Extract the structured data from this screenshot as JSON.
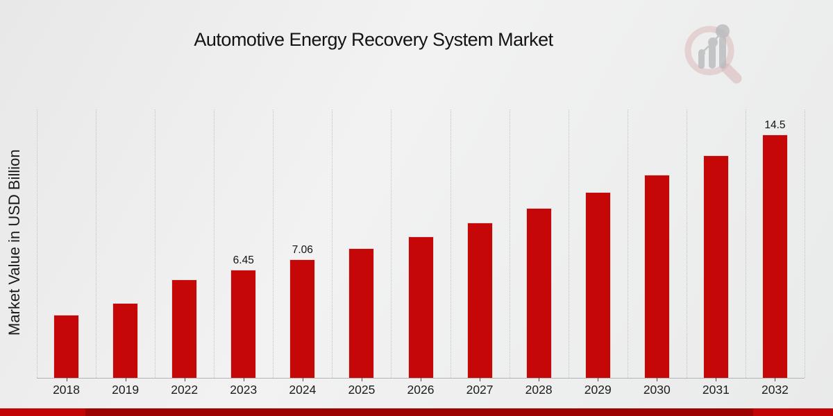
{
  "page": {
    "title": "Automotive Energy Recovery System Market"
  },
  "logo": {
    "name": "market-research-future-watermark",
    "description": "faint magnifying-glass over rising bar chart"
  },
  "chart_data": {
    "type": "bar",
    "title": "Automotive Energy Recovery System Market",
    "xlabel": "",
    "ylabel": "Market Value in USD Billion",
    "categories": [
      "2018",
      "2019",
      "2022",
      "2023",
      "2024",
      "2025",
      "2026",
      "2027",
      "2028",
      "2029",
      "2030",
      "2031",
      "2032"
    ],
    "values": [
      3.75,
      4.46,
      5.88,
      6.45,
      7.06,
      7.72,
      8.45,
      9.26,
      10.12,
      11.07,
      12.11,
      13.27,
      14.5
    ],
    "bar_labels": [
      "",
      "",
      "",
      "6.45",
      "7.06",
      "",
      "",
      "",
      "",
      "",
      "",
      "",
      "14.5"
    ],
    "ylim": [
      0,
      16
    ],
    "grid": "vertical-dotted",
    "legend_position": "none",
    "bar_color": "#c60707"
  },
  "colors": {
    "bar": "#c60707",
    "footer_edge": "#c20404",
    "footer_center": "#9c0202",
    "background": "#ececec",
    "gridline": "#c3c3c3"
  }
}
